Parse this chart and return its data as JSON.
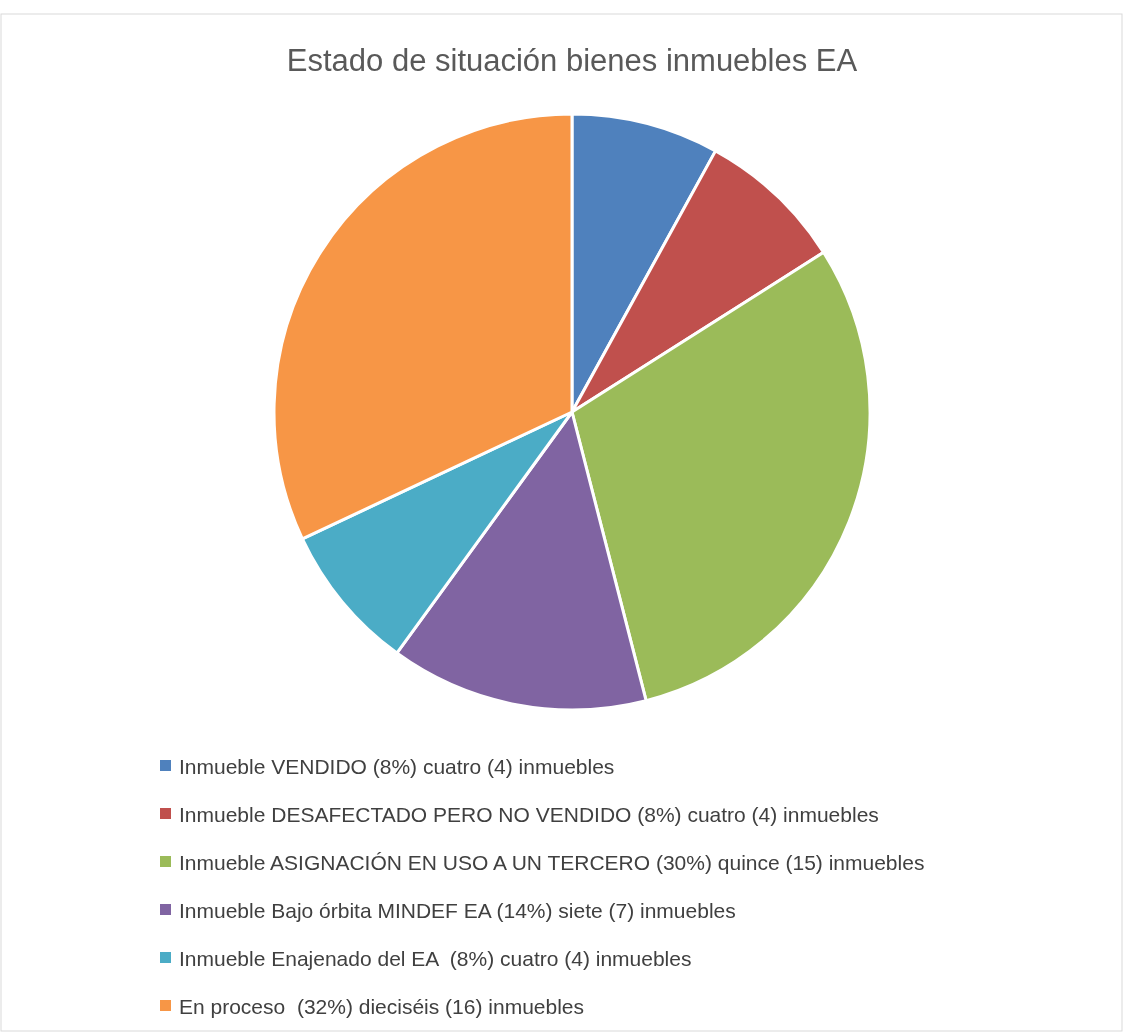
{
  "chart_data": {
    "type": "pie",
    "title": "Estado de situación bienes inmuebles EA",
    "categories": [
      "Inmueble VENDIDO (8%) cuatro (4) inmuebles",
      "Inmueble DESAFECTADO PERO NO VENDIDO (8%) cuatro (4) inmuebles",
      "Inmueble ASIGNACIÓN EN USO A UN TERCERO (30%) quince (15) inmuebles",
      "Inmueble Bajo órbita MINDEF EA (14%) siete (7) inmuebles",
      "Inmueble Enajenado del EA  (8%) cuatro (4) inmuebles",
      "En proceso  (32%) dieciséis (16) inmuebles"
    ],
    "values": [
      4,
      4,
      15,
      7,
      4,
      16
    ],
    "colors": [
      "#4f81bd",
      "#c0504d",
      "#9bbb59",
      "#8064a2",
      "#4bacc6",
      "#f79646"
    ],
    "legend": "bottom"
  }
}
